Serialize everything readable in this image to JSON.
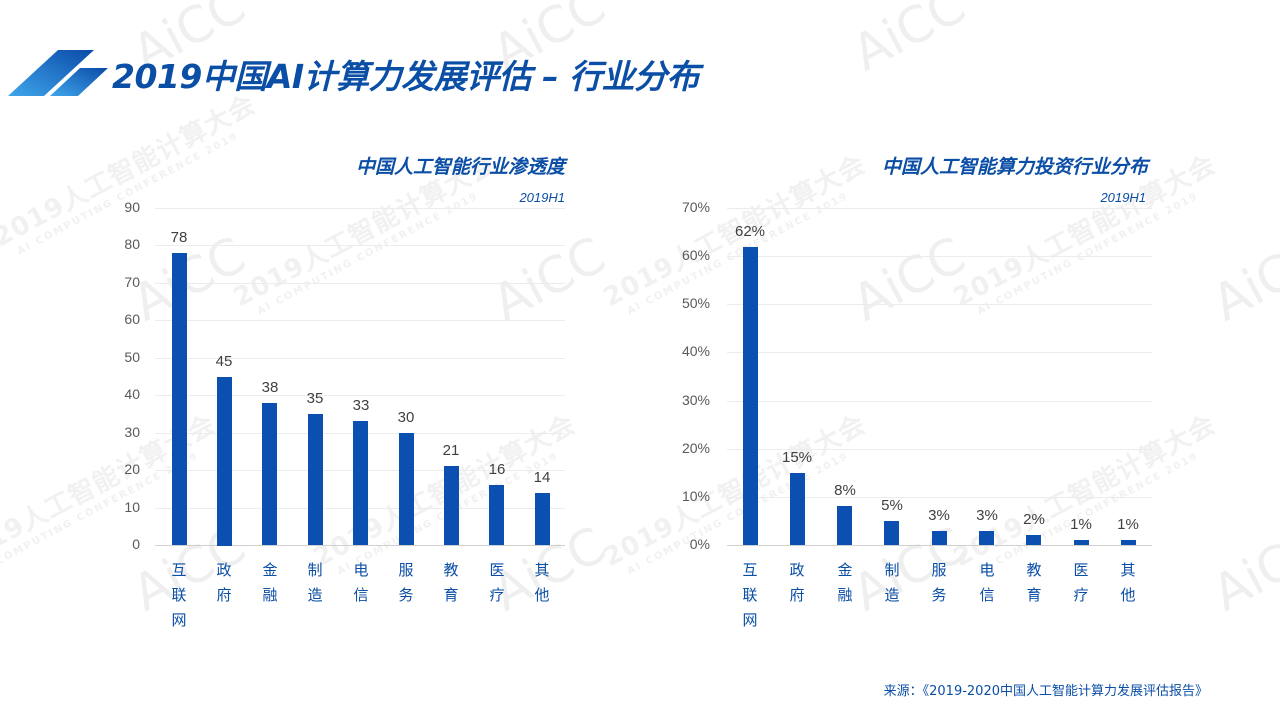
{
  "page": {
    "title": "2019中国AI计算力发展评估 – 行业分布",
    "source": "来源：《2019-2020中国人工智能计算力发展评估报告》",
    "accent_color": "#0b4ea6",
    "bar_color": "#0b50b0",
    "watermark": {
      "text": "2019人工智能计算大会",
      "subtext": "AI COMPUTING CONFERENCE 2019",
      "logo": "AiCC"
    }
  },
  "chart_data": [
    {
      "type": "bar",
      "title": "中国人工智能行业渗透度",
      "subtitle": "2019H1",
      "categories": [
        "互联网",
        "政府",
        "金融",
        "制造",
        "电信",
        "服务",
        "教育",
        "医疗",
        "其他"
      ],
      "values": [
        78,
        45,
        38,
        35,
        33,
        30,
        21,
        16,
        14
      ],
      "value_labels": [
        "78",
        "45",
        "38",
        "35",
        "33",
        "30",
        "21",
        "16",
        "14"
      ],
      "xlabel": "",
      "ylabel": "",
      "ylim": [
        0,
        90
      ],
      "yticks": [
        "0",
        "10",
        "20",
        "30",
        "40",
        "50",
        "60",
        "70",
        "80",
        "90"
      ],
      "grid": true,
      "legend": "none"
    },
    {
      "type": "bar",
      "title": "中国人工智能算力投资行业分布",
      "subtitle": "2019H1",
      "categories": [
        "互联网",
        "政府",
        "金融",
        "制造",
        "服务",
        "电信",
        "教育",
        "医疗",
        "其他"
      ],
      "values": [
        62,
        15,
        8,
        5,
        3,
        3,
        2,
        1,
        1
      ],
      "value_labels": [
        "62%",
        "15%",
        "8%",
        "5%",
        "3%",
        "3%",
        "2%",
        "1%",
        "1%"
      ],
      "xlabel": "",
      "ylabel": "",
      "ylim": [
        0,
        70
      ],
      "yticks": [
        "0%",
        "10%",
        "20%",
        "30%",
        "40%",
        "50%",
        "60%",
        "70%"
      ],
      "grid": true,
      "legend": "none"
    }
  ]
}
